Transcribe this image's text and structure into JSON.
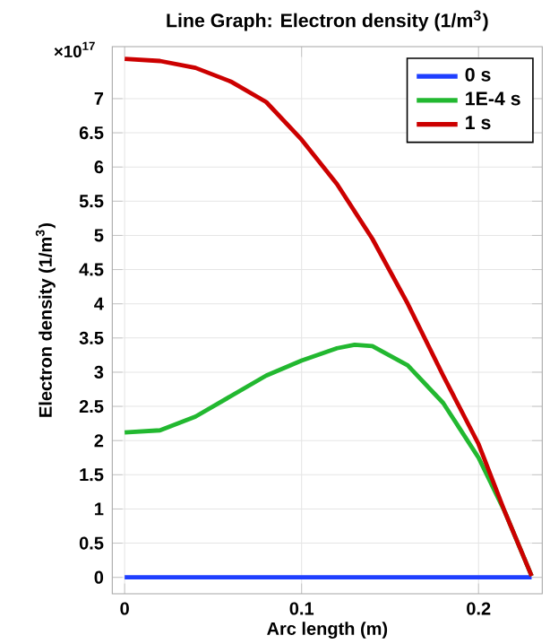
{
  "chart_data": {
    "type": "line",
    "title": "Line Graph: Electron density (1/m$^{3}$)",
    "xlabel": "Arc length (m)",
    "ylabel": "Electron density (1/m$^{3}$)",
    "annotations": [
      "×10$^{17}$"
    ],
    "xlim": [
      -0.007,
      0.236
    ],
    "ylim": [
      -0.24,
      7.76
    ],
    "xticks": [
      0,
      0.1,
      0.2
    ],
    "yticks": [
      0,
      0.5,
      1,
      1.5,
      2,
      2.5,
      3,
      3.5,
      4,
      4.5,
      5,
      5.5,
      6,
      6.5,
      7
    ],
    "grid": true,
    "legend": "top right",
    "line_style": "solid",
    "marker": "none",
    "series": [
      {
        "name": "0 s",
        "color": "#1f3fff",
        "x": [
          0,
          0.23
        ],
        "values": [
          0,
          0
        ]
      },
      {
        "name": "1E-4 s",
        "color": "#22b830",
        "x": [
          0,
          0.02,
          0.04,
          0.06,
          0.08,
          0.1,
          0.12,
          0.13,
          0.14,
          0.16,
          0.18,
          0.2,
          0.215,
          0.23
        ],
        "values": [
          2.12,
          2.15,
          2.35,
          2.65,
          2.95,
          3.17,
          3.35,
          3.4,
          3.38,
          3.1,
          2.55,
          1.75,
          0.95,
          0.02
        ]
      },
      {
        "name": "1 s",
        "color": "#cc0000",
        "x": [
          0,
          0.02,
          0.04,
          0.06,
          0.08,
          0.1,
          0.12,
          0.14,
          0.16,
          0.18,
          0.2,
          0.215,
          0.23
        ],
        "values": [
          7.58,
          7.55,
          7.45,
          7.25,
          6.95,
          6.4,
          5.75,
          4.95,
          4.0,
          2.95,
          1.95,
          0.95,
          0.02
        ]
      }
    ]
  }
}
